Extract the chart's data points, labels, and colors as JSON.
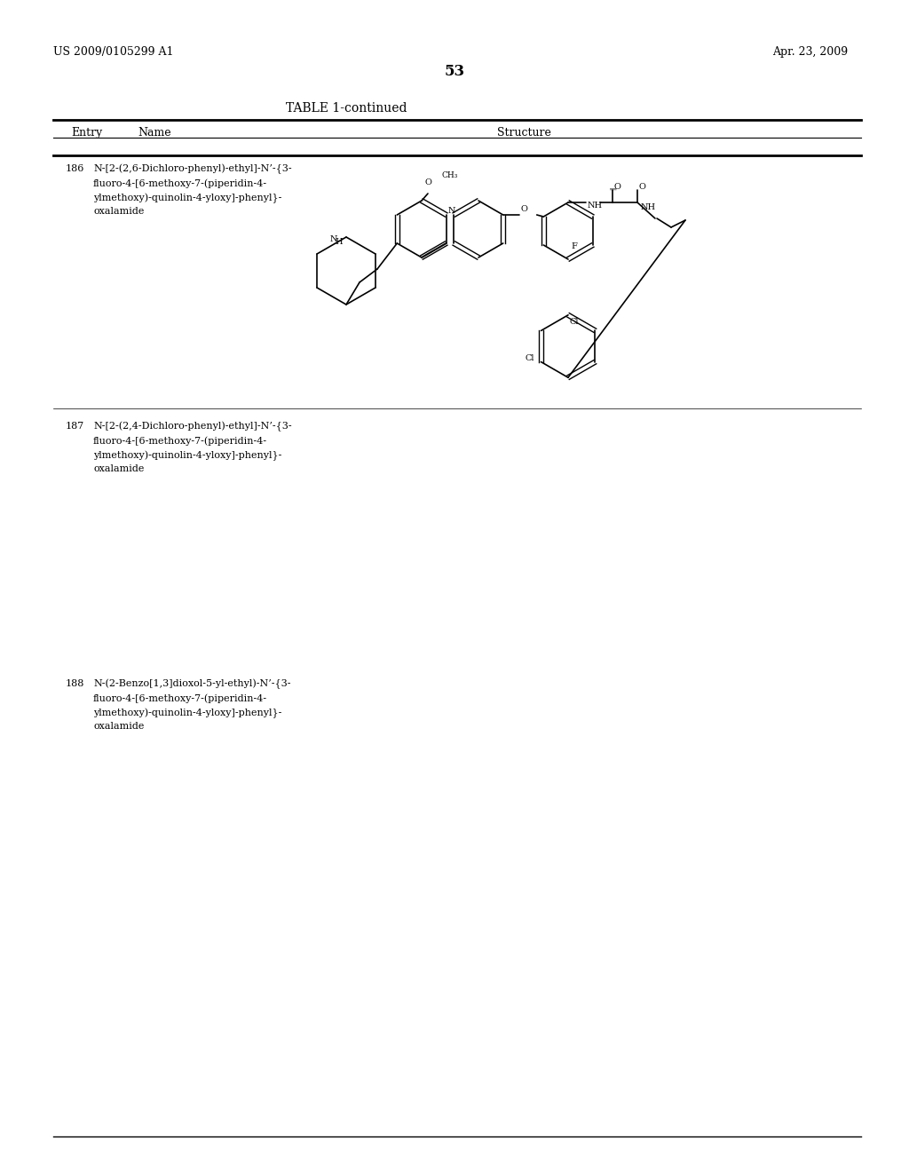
{
  "patent_number": "US 2009/0105299 A1",
  "date": "Apr. 23, 2009",
  "page_number": "53",
  "table_title": "TABLE 1-continued",
  "col_entry": "Entry",
  "col_name": "Name",
  "col_structure": "Structure",
  "entries": [
    {
      "number": "186",
      "name": "N-[2-(2,6-Dichloro-phenyl)-ethyl]-N’-{3-\nfluoro-4-[6-methoxy-7-(piperidin-4-\nylmethoxy)-quinolin-4-yloxy]-phenyl}-\noxalamide"
    },
    {
      "number": "187",
      "name": "N-[2-(2,4-Dichloro-phenyl)-ethyl]-N’-{3-\nfluoro-4-[6-methoxy-7-(piperidin-4-\nylmethoxy)-quinolin-4-yloxy]-phenyl}-\noxalamide"
    },
    {
      "number": "188",
      "name": "N-(2-Benzo[1,3]dioxol-5-yl-ethyl)-N’-{3-\nfluoro-4-[6-methoxy-7-(piperidin-4-\nylmethoxy)-quinolin-4-yloxy]-phenyl}-\noxalamide"
    }
  ],
  "bg_color": "#ffffff",
  "text_color": "#000000",
  "line_color": "#000000",
  "font_size_header": 9,
  "font_size_body": 8,
  "font_size_title": 10,
  "font_size_page": 9
}
